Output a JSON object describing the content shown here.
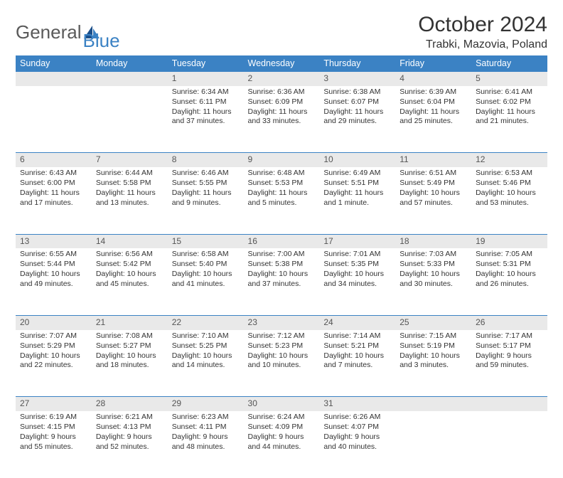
{
  "logo": {
    "text1": "General",
    "text2": "Blue"
  },
  "title": "October 2024",
  "location": "Trabki, Mazovia, Poland",
  "colors": {
    "header_bg": "#3b82c4",
    "header_text": "#ffffff",
    "daynum_bg": "#e9e9e9",
    "border": "#3b82c4",
    "text": "#333333",
    "logo_gray": "#5a5a5a",
    "logo_blue": "#3b82c4"
  },
  "weekdays": [
    "Sunday",
    "Monday",
    "Tuesday",
    "Wednesday",
    "Thursday",
    "Friday",
    "Saturday"
  ],
  "weeks": [
    [
      null,
      null,
      {
        "n": "1",
        "sr": "Sunrise: 6:34 AM",
        "ss": "Sunset: 6:11 PM",
        "dl": "Daylight: 11 hours and 37 minutes."
      },
      {
        "n": "2",
        "sr": "Sunrise: 6:36 AM",
        "ss": "Sunset: 6:09 PM",
        "dl": "Daylight: 11 hours and 33 minutes."
      },
      {
        "n": "3",
        "sr": "Sunrise: 6:38 AM",
        "ss": "Sunset: 6:07 PM",
        "dl": "Daylight: 11 hours and 29 minutes."
      },
      {
        "n": "4",
        "sr": "Sunrise: 6:39 AM",
        "ss": "Sunset: 6:04 PM",
        "dl": "Daylight: 11 hours and 25 minutes."
      },
      {
        "n": "5",
        "sr": "Sunrise: 6:41 AM",
        "ss": "Sunset: 6:02 PM",
        "dl": "Daylight: 11 hours and 21 minutes."
      }
    ],
    [
      {
        "n": "6",
        "sr": "Sunrise: 6:43 AM",
        "ss": "Sunset: 6:00 PM",
        "dl": "Daylight: 11 hours and 17 minutes."
      },
      {
        "n": "7",
        "sr": "Sunrise: 6:44 AM",
        "ss": "Sunset: 5:58 PM",
        "dl": "Daylight: 11 hours and 13 minutes."
      },
      {
        "n": "8",
        "sr": "Sunrise: 6:46 AM",
        "ss": "Sunset: 5:55 PM",
        "dl": "Daylight: 11 hours and 9 minutes."
      },
      {
        "n": "9",
        "sr": "Sunrise: 6:48 AM",
        "ss": "Sunset: 5:53 PM",
        "dl": "Daylight: 11 hours and 5 minutes."
      },
      {
        "n": "10",
        "sr": "Sunrise: 6:49 AM",
        "ss": "Sunset: 5:51 PM",
        "dl": "Daylight: 11 hours and 1 minute."
      },
      {
        "n": "11",
        "sr": "Sunrise: 6:51 AM",
        "ss": "Sunset: 5:49 PM",
        "dl": "Daylight: 10 hours and 57 minutes."
      },
      {
        "n": "12",
        "sr": "Sunrise: 6:53 AM",
        "ss": "Sunset: 5:46 PM",
        "dl": "Daylight: 10 hours and 53 minutes."
      }
    ],
    [
      {
        "n": "13",
        "sr": "Sunrise: 6:55 AM",
        "ss": "Sunset: 5:44 PM",
        "dl": "Daylight: 10 hours and 49 minutes."
      },
      {
        "n": "14",
        "sr": "Sunrise: 6:56 AM",
        "ss": "Sunset: 5:42 PM",
        "dl": "Daylight: 10 hours and 45 minutes."
      },
      {
        "n": "15",
        "sr": "Sunrise: 6:58 AM",
        "ss": "Sunset: 5:40 PM",
        "dl": "Daylight: 10 hours and 41 minutes."
      },
      {
        "n": "16",
        "sr": "Sunrise: 7:00 AM",
        "ss": "Sunset: 5:38 PM",
        "dl": "Daylight: 10 hours and 37 minutes."
      },
      {
        "n": "17",
        "sr": "Sunrise: 7:01 AM",
        "ss": "Sunset: 5:35 PM",
        "dl": "Daylight: 10 hours and 34 minutes."
      },
      {
        "n": "18",
        "sr": "Sunrise: 7:03 AM",
        "ss": "Sunset: 5:33 PM",
        "dl": "Daylight: 10 hours and 30 minutes."
      },
      {
        "n": "19",
        "sr": "Sunrise: 7:05 AM",
        "ss": "Sunset: 5:31 PM",
        "dl": "Daylight: 10 hours and 26 minutes."
      }
    ],
    [
      {
        "n": "20",
        "sr": "Sunrise: 7:07 AM",
        "ss": "Sunset: 5:29 PM",
        "dl": "Daylight: 10 hours and 22 minutes."
      },
      {
        "n": "21",
        "sr": "Sunrise: 7:08 AM",
        "ss": "Sunset: 5:27 PM",
        "dl": "Daylight: 10 hours and 18 minutes."
      },
      {
        "n": "22",
        "sr": "Sunrise: 7:10 AM",
        "ss": "Sunset: 5:25 PM",
        "dl": "Daylight: 10 hours and 14 minutes."
      },
      {
        "n": "23",
        "sr": "Sunrise: 7:12 AM",
        "ss": "Sunset: 5:23 PM",
        "dl": "Daylight: 10 hours and 10 minutes."
      },
      {
        "n": "24",
        "sr": "Sunrise: 7:14 AM",
        "ss": "Sunset: 5:21 PM",
        "dl": "Daylight: 10 hours and 7 minutes."
      },
      {
        "n": "25",
        "sr": "Sunrise: 7:15 AM",
        "ss": "Sunset: 5:19 PM",
        "dl": "Daylight: 10 hours and 3 minutes."
      },
      {
        "n": "26",
        "sr": "Sunrise: 7:17 AM",
        "ss": "Sunset: 5:17 PM",
        "dl": "Daylight: 9 hours and 59 minutes."
      }
    ],
    [
      {
        "n": "27",
        "sr": "Sunrise: 6:19 AM",
        "ss": "Sunset: 4:15 PM",
        "dl": "Daylight: 9 hours and 55 minutes."
      },
      {
        "n": "28",
        "sr": "Sunrise: 6:21 AM",
        "ss": "Sunset: 4:13 PM",
        "dl": "Daylight: 9 hours and 52 minutes."
      },
      {
        "n": "29",
        "sr": "Sunrise: 6:23 AM",
        "ss": "Sunset: 4:11 PM",
        "dl": "Daylight: 9 hours and 48 minutes."
      },
      {
        "n": "30",
        "sr": "Sunrise: 6:24 AM",
        "ss": "Sunset: 4:09 PM",
        "dl": "Daylight: 9 hours and 44 minutes."
      },
      {
        "n": "31",
        "sr": "Sunrise: 6:26 AM",
        "ss": "Sunset: 4:07 PM",
        "dl": "Daylight: 9 hours and 40 minutes."
      },
      null,
      null
    ]
  ]
}
